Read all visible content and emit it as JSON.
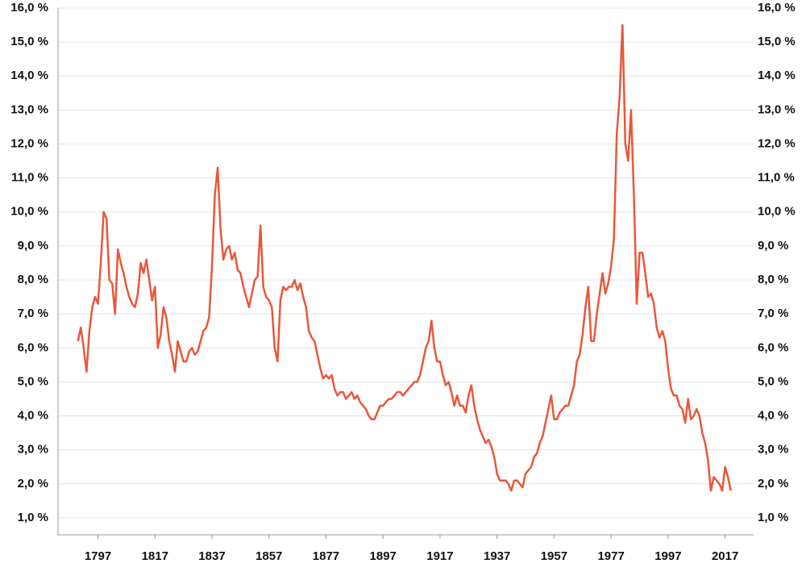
{
  "chart_data": {
    "type": "line",
    "x": [
      1790,
      1791,
      1792,
      1793,
      1794,
      1795,
      1796,
      1797,
      1798,
      1799,
      1800,
      1801,
      1802,
      1803,
      1804,
      1805,
      1806,
      1807,
      1808,
      1809,
      1810,
      1811,
      1812,
      1813,
      1814,
      1815,
      1816,
      1817,
      1818,
      1819,
      1820,
      1821,
      1822,
      1823,
      1824,
      1825,
      1826,
      1827,
      1828,
      1829,
      1830,
      1831,
      1832,
      1833,
      1834,
      1835,
      1836,
      1837,
      1838,
      1839,
      1840,
      1841,
      1842,
      1843,
      1844,
      1845,
      1846,
      1847,
      1848,
      1849,
      1850,
      1851,
      1852,
      1853,
      1854,
      1855,
      1856,
      1857,
      1858,
      1859,
      1860,
      1861,
      1862,
      1863,
      1864,
      1865,
      1866,
      1867,
      1868,
      1869,
      1870,
      1871,
      1872,
      1873,
      1874,
      1875,
      1876,
      1877,
      1878,
      1879,
      1880,
      1881,
      1882,
      1883,
      1884,
      1885,
      1886,
      1887,
      1888,
      1889,
      1890,
      1891,
      1892,
      1893,
      1894,
      1895,
      1896,
      1897,
      1898,
      1899,
      1900,
      1901,
      1902,
      1903,
      1904,
      1905,
      1906,
      1907,
      1908,
      1909,
      1910,
      1911,
      1912,
      1913,
      1914,
      1915,
      1916,
      1917,
      1918,
      1919,
      1920,
      1921,
      1922,
      1923,
      1924,
      1925,
      1926,
      1927,
      1928,
      1929,
      1930,
      1931,
      1932,
      1933,
      1934,
      1935,
      1936,
      1937,
      1938,
      1939,
      1940,
      1941,
      1942,
      1943,
      1944,
      1945,
      1946,
      1947,
      1948,
      1949,
      1950,
      1951,
      1952,
      1953,
      1954,
      1955,
      1956,
      1957,
      1958,
      1959,
      1960,
      1961,
      1962,
      1963,
      1964,
      1965,
      1966,
      1967,
      1968,
      1969,
      1970,
      1971,
      1972,
      1973,
      1974,
      1975,
      1976,
      1977,
      1978,
      1979,
      1980,
      1981,
      1982,
      1983,
      1984,
      1985,
      1986,
      1987,
      1988,
      1989,
      1990,
      1991,
      1992,
      1993,
      1994,
      1995,
      1996,
      1997,
      1998,
      1999,
      2000,
      2001,
      2002,
      2003,
      2004,
      2005,
      2006,
      2007,
      2008,
      2009,
      2010,
      2011,
      2012,
      2013,
      2014,
      2015,
      2016,
      2017,
      2018,
      2019
    ],
    "series": [
      {
        "color": "#e9573a",
        "values": [
          6.2,
          6.6,
          6.0,
          5.3,
          6.5,
          7.2,
          7.5,
          7.3,
          8.5,
          10.0,
          9.8,
          8.0,
          7.9,
          7.0,
          8.9,
          8.5,
          8.2,
          7.8,
          7.5,
          7.3,
          7.2,
          7.6,
          8.5,
          8.2,
          8.6,
          8.0,
          7.4,
          7.8,
          6.0,
          6.4,
          7.2,
          6.9,
          6.2,
          5.8,
          5.3,
          6.2,
          5.9,
          5.6,
          5.6,
          5.9,
          6.0,
          5.8,
          5.9,
          6.2,
          6.5,
          6.6,
          6.9,
          8.4,
          10.5,
          11.3,
          9.5,
          8.6,
          8.9,
          9.0,
          8.6,
          8.8,
          8.3,
          8.2,
          7.8,
          7.5,
          7.2,
          7.6,
          8.0,
          8.1,
          9.6,
          7.8,
          7.5,
          7.4,
          7.2,
          6.0,
          5.6,
          7.4,
          7.8,
          7.7,
          7.8,
          7.8,
          8.0,
          7.7,
          7.9,
          7.5,
          7.2,
          6.5,
          6.3,
          6.2,
          5.8,
          5.4,
          5.1,
          5.2,
          5.1,
          5.2,
          4.8,
          4.6,
          4.7,
          4.7,
          4.5,
          4.6,
          4.7,
          4.5,
          4.6,
          4.4,
          4.3,
          4.2,
          4.0,
          3.9,
          3.9,
          4.1,
          4.3,
          4.3,
          4.4,
          4.5,
          4.5,
          4.6,
          4.7,
          4.7,
          4.6,
          4.7,
          4.8,
          4.9,
          5.0,
          5.0,
          5.2,
          5.6,
          6.0,
          6.2,
          6.8,
          6.0,
          5.6,
          5.6,
          5.2,
          4.9,
          5.0,
          4.7,
          4.3,
          4.6,
          4.3,
          4.3,
          4.1,
          4.6,
          4.9,
          4.3,
          3.9,
          3.6,
          3.4,
          3.2,
          3.3,
          3.1,
          2.8,
          2.3,
          2.1,
          2.1,
          2.1,
          2.0,
          1.8,
          2.1,
          2.1,
          2.0,
          1.9,
          2.3,
          2.4,
          2.5,
          2.8,
          2.9,
          3.2,
          3.4,
          3.8,
          4.2,
          4.6,
          3.9,
          3.9,
          4.1,
          4.2,
          4.3,
          4.3,
          4.6,
          4.9,
          5.6,
          5.8,
          6.4,
          7.2,
          7.8,
          6.2,
          6.2,
          7.0,
          7.6,
          8.2,
          7.6,
          7.9,
          8.4,
          9.2,
          12.3,
          13.4,
          15.5,
          12.0,
          11.5,
          13.0,
          10.5,
          7.3,
          8.8,
          8.8,
          8.2,
          7.5,
          7.6,
          7.3,
          6.6,
          6.3,
          6.5,
          6.2,
          5.4,
          4.8,
          4.6,
          4.6,
          4.3,
          4.2,
          3.8,
          4.5,
          3.9,
          4.0,
          4.2,
          4.0,
          3.5,
          3.2,
          2.7,
          1.8,
          2.2,
          2.1,
          2.0,
          1.8,
          2.5,
          2.2,
          1.8
        ]
      }
    ],
    "xlim": [
      1783,
      2027
    ],
    "xticks": [
      1797,
      1817,
      1837,
      1857,
      1877,
      1897,
      1917,
      1937,
      1957,
      1977,
      1997,
      2017
    ],
    "ylim": [
      0.5,
      16
    ],
    "yticks": [
      {
        "value": 1,
        "label": "1,0 %"
      },
      {
        "value": 2,
        "label": "2,0 %"
      },
      {
        "value": 3,
        "label": "3,0 %"
      },
      {
        "value": 4,
        "label": "4,0 %"
      },
      {
        "value": 5,
        "label": "5,0 %"
      },
      {
        "value": 6,
        "label": "6,0 %"
      },
      {
        "value": 7,
        "label": "7,0 %"
      },
      {
        "value": 8,
        "label": "8,0 %"
      },
      {
        "value": 9,
        "label": "9,0 %"
      },
      {
        "value": 10,
        "label": "10,0 %"
      },
      {
        "value": 11,
        "label": "11,0 %"
      },
      {
        "value": 12,
        "label": "12,0 %"
      },
      {
        "value": 13,
        "label": "13,0 %"
      },
      {
        "value": 14,
        "label": "14,0 %"
      },
      {
        "value": 15,
        "label": "15,0 %"
      },
      {
        "value": 16,
        "label": "16,0 %"
      }
    ],
    "grid": true
  }
}
